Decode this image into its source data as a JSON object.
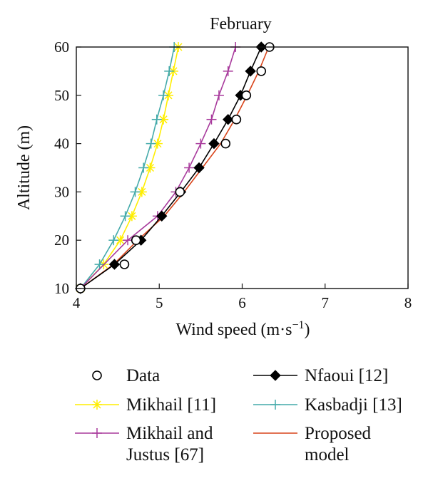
{
  "chart_data": {
    "type": "line",
    "title": "February",
    "xlabel": "Wind speed (m·s",
    "xlabel_sup": "−1",
    "xlabel_close": ")",
    "ylabel": "Altitude (m)",
    "xlim": [
      4,
      8
    ],
    "ylim": [
      10,
      60
    ],
    "xticks": [
      "4",
      "5",
      "6",
      "7",
      "8"
    ],
    "yticks": [
      "10",
      "20",
      "30",
      "40",
      "50",
      "60"
    ],
    "grid": false,
    "legend_position": "bottom",
    "series": [
      {
        "name": "Data",
        "marker": "circle",
        "line": false,
        "color": "#000000",
        "points": [
          [
            4.05,
            10
          ],
          [
            4.58,
            15
          ],
          [
            4.72,
            20
          ],
          [
            5.25,
            30
          ],
          [
            5.8,
            40
          ],
          [
            5.93,
            45
          ],
          [
            6.05,
            50
          ],
          [
            6.23,
            55
          ],
          [
            6.33,
            60
          ]
        ]
      },
      {
        "name": "Mikhail [11]",
        "marker": "asterisk",
        "line": true,
        "color": "#ffee00",
        "points": [
          [
            4.05,
            10
          ],
          [
            4.33,
            15
          ],
          [
            4.53,
            20
          ],
          [
            4.67,
            25
          ],
          [
            4.79,
            30
          ],
          [
            4.89,
            35
          ],
          [
            4.98,
            40
          ],
          [
            5.05,
            45
          ],
          [
            5.11,
            50
          ],
          [
            5.17,
            55
          ],
          [
            5.23,
            60
          ]
        ]
      },
      {
        "name": "Nfaoui [12]",
        "marker": "diamond",
        "line": true,
        "color": "#000000",
        "points": [
          [
            4.05,
            10
          ],
          [
            4.46,
            15
          ],
          [
            4.78,
            20
          ],
          [
            5.03,
            25
          ],
          [
            5.26,
            30
          ],
          [
            5.48,
            35
          ],
          [
            5.66,
            40
          ],
          [
            5.83,
            45
          ],
          [
            5.98,
            50
          ],
          [
            6.1,
            55
          ],
          [
            6.23,
            60
          ]
        ]
      },
      {
        "name": "Kasbadji [13]",
        "marker": "plus",
        "line": true,
        "color": "#44aaaa",
        "points": [
          [
            4.05,
            10
          ],
          [
            4.28,
            15
          ],
          [
            4.45,
            20
          ],
          [
            4.59,
            25
          ],
          [
            4.71,
            30
          ],
          [
            4.81,
            35
          ],
          [
            4.9,
            40
          ],
          [
            4.97,
            45
          ],
          [
            5.05,
            50
          ],
          [
            5.12,
            55
          ],
          [
            5.18,
            60
          ]
        ]
      },
      {
        "name": "Mikhail and Justus [67]",
        "label_lines": [
          "Mikhail and",
          "Justus [67]"
        ],
        "marker": "plus",
        "line": true,
        "color": "#a83a9c",
        "points": [
          [
            4.05,
            10
          ],
          [
            4.62,
            20
          ],
          [
            4.98,
            25
          ],
          [
            5.2,
            30
          ],
          [
            5.36,
            35
          ],
          [
            5.5,
            40
          ],
          [
            5.63,
            45
          ],
          [
            5.72,
            50
          ],
          [
            5.83,
            55
          ],
          [
            5.92,
            60
          ]
        ]
      },
      {
        "name": "Proposed model",
        "label_lines": [
          "Proposed",
          "model"
        ],
        "marker": "none",
        "line": true,
        "color": "#d9441a",
        "points": [
          [
            4.05,
            10
          ],
          [
            4.45,
            15
          ],
          [
            4.74,
            20
          ],
          [
            5.06,
            25
          ],
          [
            5.3,
            30
          ],
          [
            5.52,
            35
          ],
          [
            5.74,
            40
          ],
          [
            5.91,
            45
          ],
          [
            6.06,
            50
          ],
          [
            6.2,
            55
          ],
          [
            6.32,
            60
          ]
        ]
      }
    ]
  }
}
